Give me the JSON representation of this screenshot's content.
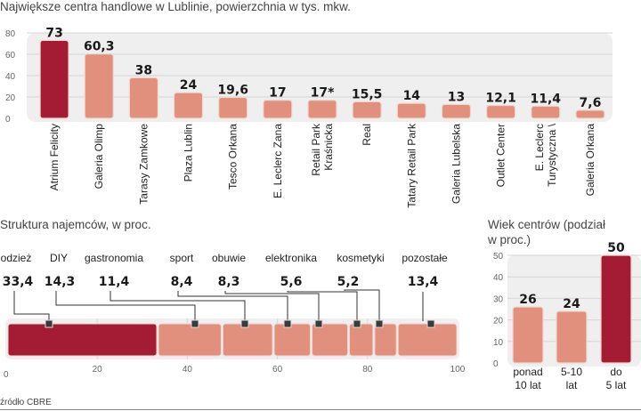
{
  "colors": {
    "highlight": "#a31c33",
    "normal": "#e0907c",
    "panel": "#efefef",
    "grid": "#d6d6d6",
    "connector": "#333333"
  },
  "source": "źródło CBRE",
  "chart_data": [
    {
      "id": "centers",
      "type": "bar",
      "title": "Największe centra handlowe w Lublinie, powierzchnia w tys. mkw.",
      "xlabel": "",
      "ylabel": "",
      "ylim": [
        0,
        80
      ],
      "yticks": [
        0,
        20,
        40,
        60,
        80
      ],
      "grid": true,
      "categories": [
        [
          "Atrium Felicity"
        ],
        [
          "Galeria Olimp"
        ],
        [
          "Tarasy Zamkowe"
        ],
        [
          "Plaza Lublin"
        ],
        [
          "Tesco Orkana"
        ],
        [
          "E. Leclerc Zana"
        ],
        [
          "Retail Park",
          "Kraśnicka"
        ],
        [
          "Real"
        ],
        [
          "Tatary Retail Park"
        ],
        [
          "Galeria Lubelska"
        ],
        [
          "Outlet Center"
        ],
        [
          "E. Leclerc",
          "Turystyczna \\"
        ],
        [
          "Galeria Orkana"
        ]
      ],
      "values": [
        73,
        60.3,
        38,
        24,
        19.6,
        17,
        17,
        15.5,
        14,
        13,
        12.1,
        11.4,
        7.6
      ],
      "labels": [
        "73",
        "60,3",
        "38",
        "24",
        "19,6",
        "17",
        "17*",
        "15,5",
        "14",
        "13",
        "12,1",
        "11,4",
        "7,6"
      ],
      "highlight_index": 0
    },
    {
      "id": "tenants",
      "type": "bar",
      "subtype": "stacked-horizontal",
      "title": "Struktura najemców, w proc.",
      "xlim": [
        0,
        100
      ],
      "xticks": [
        0,
        20,
        40,
        60,
        80,
        100
      ],
      "grid": true,
      "categories": [
        "odzież",
        "DIY",
        "gastronomia",
        "sport",
        "obuwie",
        "elektronika",
        "kosmetyki",
        "pozostałe"
      ],
      "values": [
        33.4,
        14.3,
        11.4,
        8.4,
        8.3,
        5.6,
        5.2,
        13.4
      ],
      "labels": [
        "33,4",
        "14,3",
        "11,4",
        "8,4",
        "8,3",
        "5,6",
        "5,2",
        "13,4"
      ],
      "highlight_index": 0
    },
    {
      "id": "age",
      "type": "bar",
      "title": "Wiek centrów (podział w proc.)",
      "title_lines": [
        "Wiek centrów (podział",
        "w proc.)"
      ],
      "ylim": [
        0,
        50
      ],
      "yticks": [
        0,
        10,
        20,
        30,
        40,
        50
      ],
      "grid": true,
      "categories": [
        [
          "ponad",
          "10 lat"
        ],
        [
          "5-10",
          "lat"
        ],
        [
          "do",
          "5 lat"
        ]
      ],
      "values": [
        26,
        24,
        50
      ],
      "labels": [
        "26",
        "24",
        "50"
      ],
      "highlight_index": 2
    }
  ]
}
